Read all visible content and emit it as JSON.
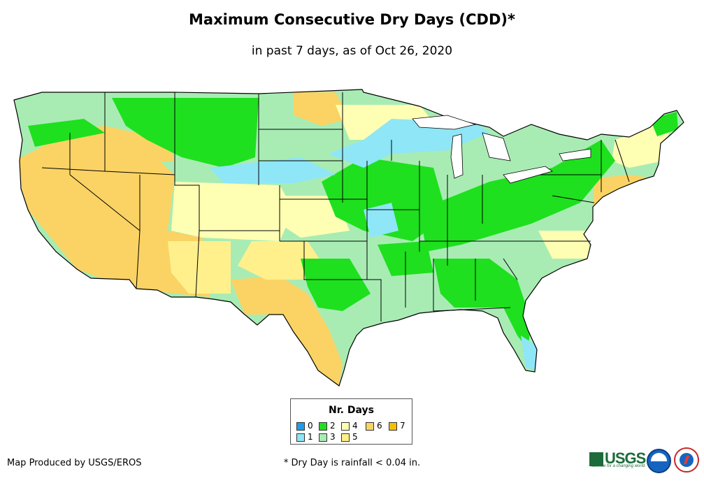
{
  "title": "Maximum Consecutive Dry Days (CDD)*",
  "subtitle": "in past 7 days, as of Oct 26, 2020",
  "map": {
    "region": "Contiguous United States",
    "category_colors": {
      "0": "#1e9ee8",
      "1": "#8ee6f7",
      "2": "#1ee01e",
      "3": "#a8ecb4",
      "4": "#ffffb4",
      "5": "#fff08c",
      "6": "#fad364",
      "7": "#f5be00"
    },
    "boundary_color": "#000000"
  },
  "legend": {
    "title": "Nr. Days",
    "items": [
      {
        "label": "0",
        "color": "#1e9ee8"
      },
      {
        "label": "1",
        "color": "#8ee6f7"
      },
      {
        "label": "2",
        "color": "#1ee01e"
      },
      {
        "label": "3",
        "color": "#a8ecb4"
      },
      {
        "label": "4",
        "color": "#ffffb4"
      },
      {
        "label": "5",
        "color": "#fff08c"
      },
      {
        "label": "6",
        "color": "#fad364"
      },
      {
        "label": "7",
        "color": "#f5be00"
      }
    ]
  },
  "credit": "Map Produced by USGS/EROS",
  "footnote": "* Dry Day is rainfall < 0.04 in.",
  "logos": {
    "usgs_text": "USGS",
    "usgs_tagline": "science for a changing world",
    "noaa_icon": "noaa-logo",
    "nws_icon": "nws-logo"
  }
}
